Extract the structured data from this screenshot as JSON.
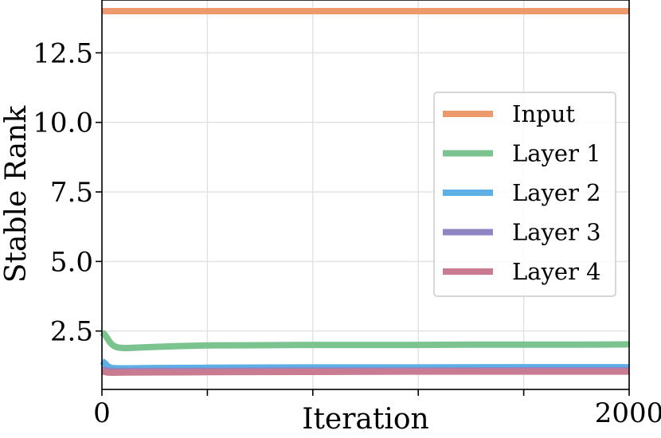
{
  "chart_data": {
    "type": "line",
    "title": "",
    "xlabel": "Iteration",
    "ylabel": "Stable Rank",
    "xlim": [
      0,
      2000
    ],
    "ylim": [
      0.4,
      14.4
    ],
    "xticks": [
      0,
      400,
      800,
      1200,
      1600,
      2000
    ],
    "xtick_labels": [
      "0",
      "",
      "",
      "",
      "",
      "2000"
    ],
    "yticks": [
      2.5,
      5.0,
      7.5,
      10.0,
      12.5
    ],
    "ytick_labels": [
      "2.5",
      "5.0",
      "7.5",
      "10.0",
      "12.5"
    ],
    "grid": true,
    "legend_position": "center-right",
    "series": [
      {
        "name": "Input",
        "color": "#ec9a6b",
        "x": [
          0,
          2000
        ],
        "y": [
          14.0,
          14.0
        ]
      },
      {
        "name": "Layer 1",
        "color": "#7cc48f",
        "x": [
          0,
          10,
          20,
          30,
          40,
          50,
          60,
          80,
          100,
          150,
          200,
          300,
          400,
          600,
          800,
          1000,
          1200,
          1400,
          1600,
          1800,
          2000
        ],
        "y": [
          2.45,
          2.38,
          2.25,
          2.1,
          2.0,
          1.94,
          1.91,
          1.89,
          1.89,
          1.91,
          1.93,
          1.96,
          1.98,
          1.99,
          2.0,
          2.0,
          2.0,
          2.01,
          2.01,
          2.01,
          2.02
        ]
      },
      {
        "name": "Layer 2",
        "color": "#5db0e6",
        "x": [
          0,
          10,
          20,
          30,
          40,
          60,
          100,
          200,
          400,
          800,
          1200,
          1600,
          2000
        ],
        "y": [
          1.42,
          1.35,
          1.25,
          1.19,
          1.17,
          1.16,
          1.16,
          1.17,
          1.18,
          1.19,
          1.19,
          1.2,
          1.2
        ]
      },
      {
        "name": "Layer 3",
        "color": "#8f85c2",
        "x": [
          0,
          20,
          40,
          100,
          400,
          800,
          1200,
          1600,
          2000
        ],
        "y": [
          1.12,
          1.08,
          1.06,
          1.06,
          1.07,
          1.08,
          1.08,
          1.09,
          1.09
        ]
      },
      {
        "name": "Layer 4",
        "color": "#c97b92",
        "x": [
          0,
          20,
          40,
          100,
          400,
          800,
          1200,
          1600,
          2000
        ],
        "y": [
          1.05,
          1.01,
          1.0,
          1.01,
          1.02,
          1.03,
          1.04,
          1.04,
          1.04
        ]
      }
    ]
  }
}
